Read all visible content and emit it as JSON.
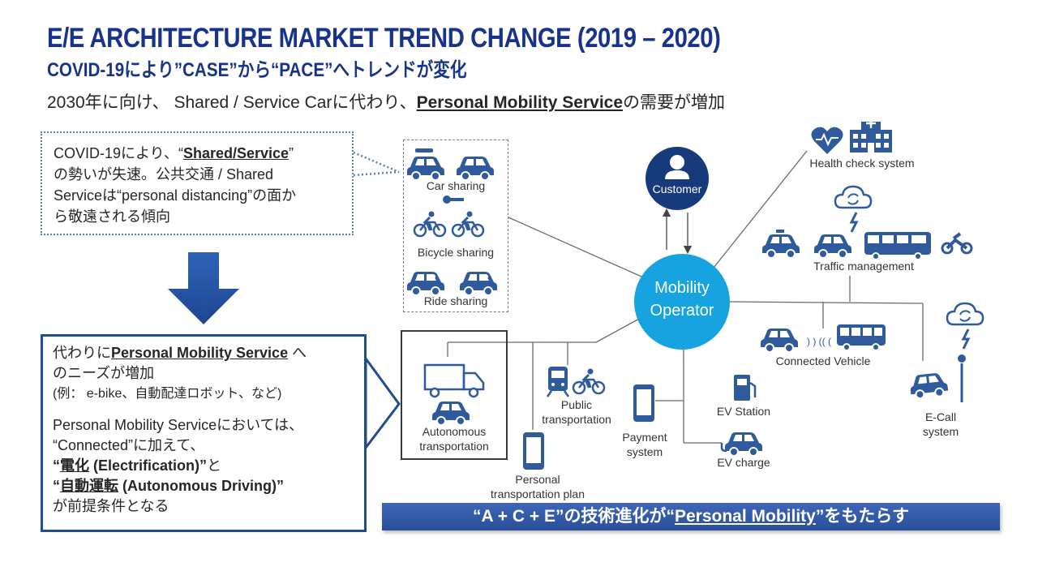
{
  "title": {
    "main": "E/E ARCHITECTURE MARKET TREND CHANGE (2019 – 2020)",
    "sub": "COVID-19により”CASE”から“PACE”へトレンドが変化"
  },
  "subtitle": {
    "prefix": "2030年に向け、 Shared / Service Carに代わり、",
    "highlight": "Personal Mobility Service",
    "suffix": "の需要が増加"
  },
  "covid_box": {
    "l1_pre": "COVID-19により、“",
    "l1_bold": "Shared/Service",
    "l1_post": "”",
    "l2": "の勢いが失速。公共交通 / Shared",
    "l3": "Serviceは“personal distancing”の面か",
    "l4": "ら敬遠される傾向"
  },
  "pm_box": {
    "l1_pre": "代わりに",
    "l1_bold": "Personal Mobility Service",
    "l1_post": " へ",
    "l2": "のニーズが増加",
    "l3": "(例： e-bike、自動配達ロボット、など)",
    "l4": "Personal Mobility Serviceにおいては、",
    "l5": "“Connected”に加えて、",
    "l6_q1": "“",
    "l6_bold": "電化",
    "l6_rest": " (Electrification)”",
    "l6_post": "と",
    "l7_q1": "“",
    "l7_bold": "自動運転",
    "l7_rest": " (Autonomous Driving)”",
    "l8": "が前提条件となる"
  },
  "banner": {
    "pre": "“A + C + E”の技術進化が“",
    "highlight": "Personal Mobility",
    "post": "”をもたらす"
  },
  "diagram": {
    "operator_l1": "Mobility",
    "operator_l2": "Operator",
    "customer": "Customer",
    "car_sharing": "Car sharing",
    "bicycle_sharing": "Bicycle sharing",
    "ride_sharing": "Ride sharing",
    "autonomous_l1": "Autonomous",
    "autonomous_l2": "transportation",
    "personal_plan_l1": "Personal",
    "personal_plan_l2": "transportation plan",
    "public_l1": "Public",
    "public_l2": "transportation",
    "payment_l1": "Payment",
    "payment_l2": "system",
    "ev_station": "EV Station",
    "ev_charge": "EV charge",
    "connected_vehicle": "Connected Vehicle",
    "ecall_l1": "E-Call",
    "ecall_l2": "system",
    "traffic_management": "Traffic management",
    "health_check": "Health check system"
  },
  "colors": {
    "title": "#17338a",
    "icon": "#2f5a9c",
    "operator": "#16a3e0",
    "customer": "#173b7a",
    "banner": "#2f58a5"
  }
}
